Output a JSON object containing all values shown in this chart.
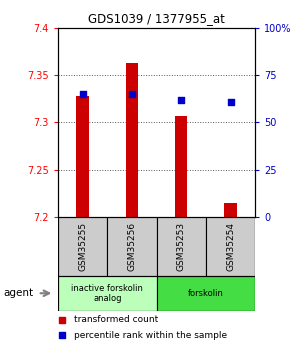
{
  "title": "GDS1039 / 1377955_at",
  "samples": [
    "GSM35255",
    "GSM35256",
    "GSM35253",
    "GSM35254"
  ],
  "bar_values": [
    7.328,
    7.363,
    7.307,
    7.215
  ],
  "bar_base": 7.2,
  "percentile_values": [
    65,
    65,
    62,
    61
  ],
  "ylim_left": [
    7.2,
    7.4
  ],
  "ylim_right": [
    0,
    100
  ],
  "yticks_left": [
    7.2,
    7.25,
    7.3,
    7.35,
    7.4
  ],
  "yticks_right": [
    0,
    25,
    50,
    75,
    100
  ],
  "ytick_labels_right": [
    "0",
    "25",
    "50",
    "75",
    "100%"
  ],
  "bar_color": "#cc0000",
  "percentile_color": "#0000cc",
  "grid_color": "#555555",
  "agent_groups": [
    {
      "label": "inactive forskolin\nanalog",
      "span": [
        0,
        2
      ],
      "color": "#bbffbb"
    },
    {
      "label": "forskolin",
      "span": [
        2,
        4
      ],
      "color": "#44dd44"
    }
  ],
  "legend_bar_label": "transformed count",
  "legend_pct_label": "percentile rank within the sample",
  "box_bg": "#cccccc",
  "bar_width": 0.25
}
